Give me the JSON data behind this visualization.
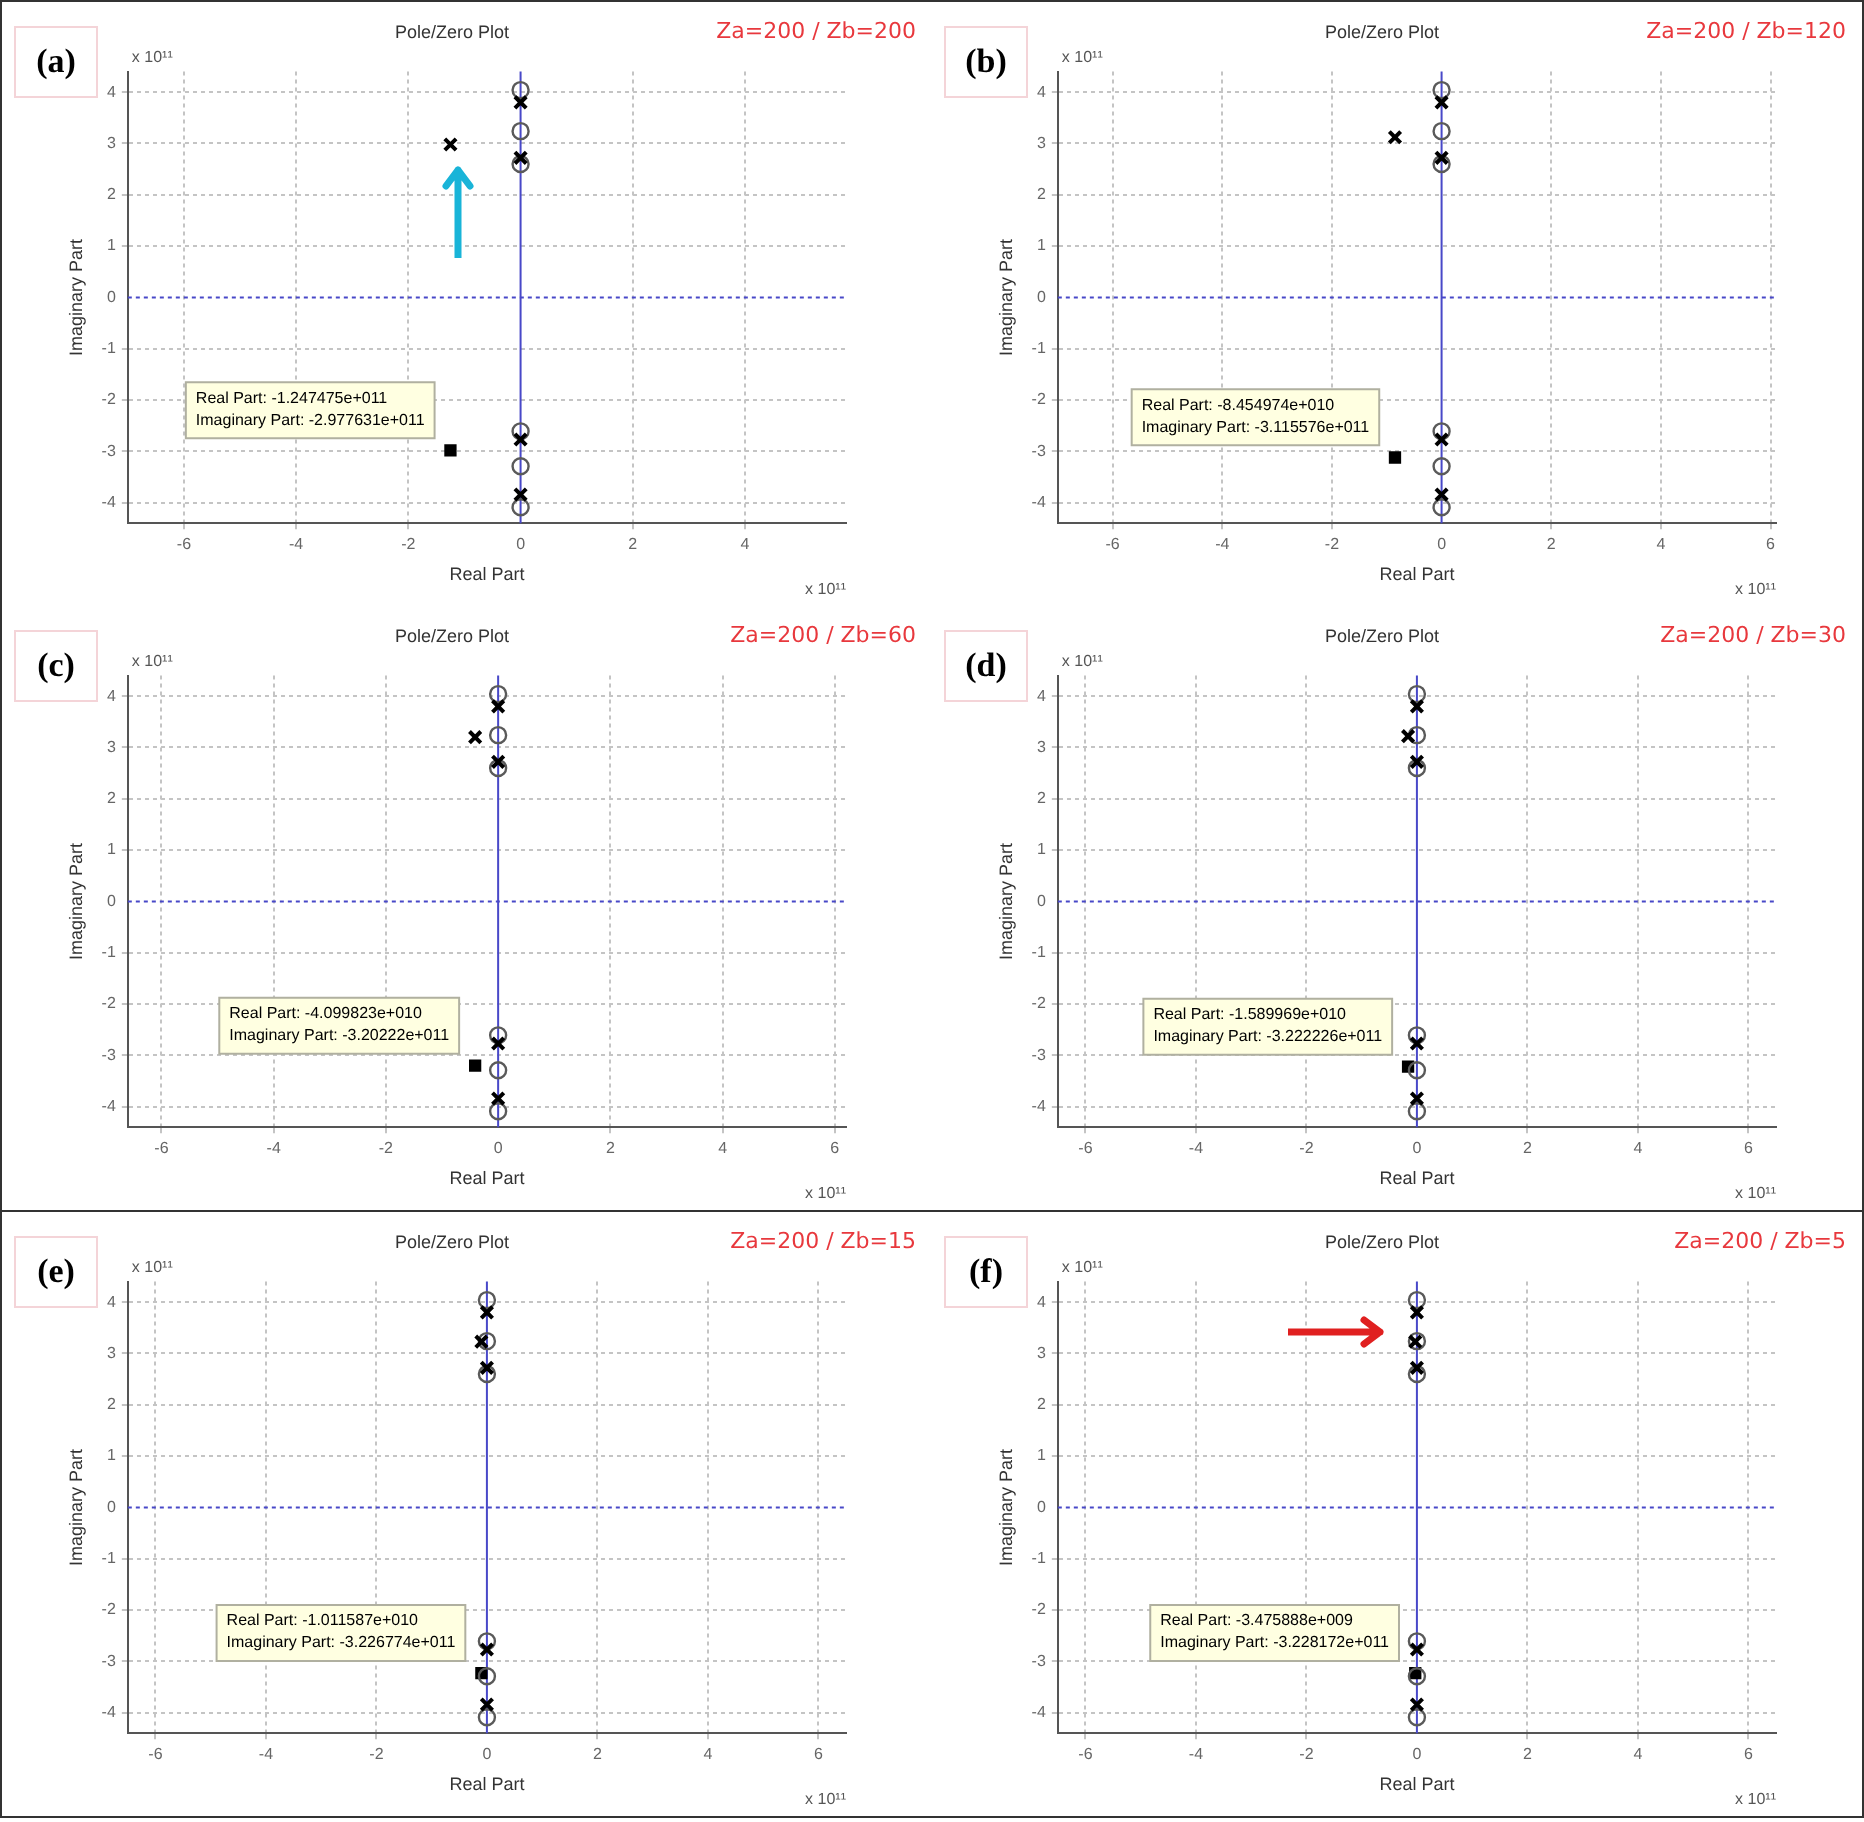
{
  "chart_data": [
    {
      "type": "scatter",
      "title": "Pole/Zero Plot",
      "subtitle": "Za=200 / Zb=200",
      "xlabel": "Real Part",
      "ylabel": "Imaginary Part",
      "annotations": [
        "(a)",
        "x 10¹¹",
        "x 10¹¹",
        {
          "text": "Real Part: -1.247475e+011\nImaginary Part: -2.977631e+011",
          "x": -1.247475,
          "y": -2.977631
        }
      ],
      "series": [
        {
          "color": "#000000",
          "marker": "cross",
          "x": [
            -1.25,
            0,
            0,
            0,
            0
          ],
          "values": [
            2.98,
            3.8,
            2.72,
            -2.77,
            -3.84
          ]
        },
        {
          "color": "#5a5a5a",
          "marker": "circle",
          "x": [
            0,
            0,
            0,
            0,
            0,
            0
          ],
          "values": [
            4.04,
            3.24,
            2.6,
            -2.61,
            -3.29,
            -4.09
          ]
        },
        {
          "color": "#000000",
          "marker": "square",
          "x": [
            -1.25
          ],
          "values": [
            -2.98
          ]
        }
      ],
      "xlim": [
        -7,
        5.8
      ],
      "xticks": [
        -6,
        -4,
        -2,
        0,
        2,
        4
      ],
      "ylim": [
        -4.4,
        4.4
      ],
      "yticks": [
        -4,
        -3,
        -2,
        -1,
        0,
        1,
        2,
        3,
        4
      ],
      "grid": true,
      "ref_lines": [
        {
          "axis": "x",
          "value": 0,
          "color": "#4848c8",
          "line_style": "solid"
        },
        {
          "axis": "y",
          "value": 0,
          "color": "#4848c8",
          "line_style": "dotted"
        }
      ]
    },
    {
      "type": "scatter",
      "title": "Pole/Zero Plot",
      "subtitle": "Za=200 / Zb=120",
      "xlabel": "Real Part",
      "ylabel": "Imaginary Part",
      "annotations": [
        "(b)",
        "x 10¹¹",
        "x 10¹¹",
        {
          "text": "Real Part: -8.454974e+010\nImaginary Part: -3.115576e+011",
          "x": -0.8454974,
          "y": -3.115576
        }
      ],
      "series": [
        {
          "color": "#000000",
          "marker": "cross",
          "x": [
            -0.85,
            0,
            0,
            0,
            0
          ],
          "values": [
            3.12,
            3.8,
            2.72,
            -2.77,
            -3.84
          ]
        },
        {
          "color": "#5a5a5a",
          "marker": "circle",
          "x": [
            0,
            0,
            0,
            0,
            0,
            0
          ],
          "values": [
            4.04,
            3.24,
            2.6,
            -2.61,
            -3.29,
            -4.09
          ]
        },
        {
          "color": "#000000",
          "marker": "square",
          "x": [
            -0.85
          ],
          "values": [
            -3.12
          ]
        }
      ],
      "xlim": [
        -7,
        6.1
      ],
      "xticks": [
        -6,
        -4,
        -2,
        0,
        2,
        4,
        6
      ],
      "ylim": [
        -4.4,
        4.4
      ],
      "yticks": [
        -4,
        -3,
        -2,
        -1,
        0,
        1,
        2,
        3,
        4
      ],
      "grid": true,
      "ref_lines": [
        {
          "axis": "x",
          "value": 0,
          "color": "#4848c8",
          "line_style": "solid"
        },
        {
          "axis": "y",
          "value": 0,
          "color": "#4848c8",
          "line_style": "dotted"
        }
      ]
    },
    {
      "type": "scatter",
      "title": "Pole/Zero Plot",
      "subtitle": "Za=200 / Zb=60",
      "xlabel": "Real Part",
      "ylabel": "Imaginary Part",
      "annotations": [
        "(c)",
        "x 10¹¹",
        "x 10¹¹",
        {
          "text": "Real Part: -4.099823e+010\nImaginary Part: -3.20222e+011",
          "x": -0.4099823,
          "y": -3.20222
        }
      ],
      "series": [
        {
          "color": "#000000",
          "marker": "cross",
          "x": [
            -0.41,
            0,
            0,
            0,
            0
          ],
          "values": [
            3.2,
            3.8,
            2.72,
            -2.77,
            -3.84
          ]
        },
        {
          "color": "#5a5a5a",
          "marker": "circle",
          "x": [
            0,
            0,
            0,
            0,
            0,
            0
          ],
          "values": [
            4.04,
            3.24,
            2.6,
            -2.61,
            -3.29,
            -4.09
          ]
        },
        {
          "color": "#000000",
          "marker": "square",
          "x": [
            -0.41
          ],
          "values": [
            -3.2
          ]
        }
      ],
      "xlim": [
        -6.6,
        6.2
      ],
      "xticks": [
        -6,
        -4,
        -2,
        0,
        2,
        4,
        6
      ],
      "ylim": [
        -4.4,
        4.4
      ],
      "yticks": [
        -4,
        -3,
        -2,
        -1,
        0,
        1,
        2,
        3,
        4
      ],
      "grid": true,
      "ref_lines": [
        {
          "axis": "x",
          "value": 0,
          "color": "#4848c8",
          "line_style": "solid"
        },
        {
          "axis": "y",
          "value": 0,
          "color": "#4848c8",
          "line_style": "dotted"
        }
      ]
    },
    {
      "type": "scatter",
      "title": "Pole/Zero Plot",
      "subtitle": "Za=200 / Zb=30",
      "xlabel": "Real Part",
      "ylabel": "Imaginary Part",
      "annotations": [
        "(d)",
        "x 10¹¹",
        "x 10¹¹",
        {
          "text": "Real Part: -1.589969e+010\nImaginary Part: -3.222226e+011",
          "x": -0.1589969,
          "y": -3.222226
        }
      ],
      "series": [
        {
          "color": "#000000",
          "marker": "cross",
          "x": [
            -0.16,
            0,
            0,
            0,
            0
          ],
          "values": [
            3.22,
            3.8,
            2.72,
            -2.77,
            -3.84
          ]
        },
        {
          "color": "#5a5a5a",
          "marker": "circle",
          "x": [
            0,
            0,
            0,
            0,
            0,
            0
          ],
          "values": [
            4.04,
            3.24,
            2.6,
            -2.61,
            -3.29,
            -4.09
          ]
        },
        {
          "color": "#000000",
          "marker": "square",
          "x": [
            -0.16
          ],
          "values": [
            -3.22
          ]
        }
      ],
      "xlim": [
        -6.5,
        6.5
      ],
      "xticks": [
        -6,
        -4,
        -2,
        0,
        2,
        4,
        6
      ],
      "ylim": [
        -4.4,
        4.4
      ],
      "yticks": [
        -4,
        -3,
        -2,
        -1,
        0,
        1,
        2,
        3,
        4
      ],
      "grid": true,
      "ref_lines": [
        {
          "axis": "x",
          "value": 0,
          "color": "#4848c8",
          "line_style": "solid"
        },
        {
          "axis": "y",
          "value": 0,
          "color": "#4848c8",
          "line_style": "dotted"
        }
      ]
    },
    {
      "type": "scatter",
      "title": "Pole/Zero Plot",
      "subtitle": "Za=200 / Zb=15",
      "xlabel": "Real Part",
      "ylabel": "Imaginary Part",
      "annotations": [
        "(e)",
        "x 10¹¹",
        "x 10¹¹",
        {
          "text": "Real Part: -1.011587e+010\nImaginary Part: -3.226774e+011",
          "x": -0.1011587,
          "y": -3.226774
        }
      ],
      "series": [
        {
          "color": "#000000",
          "marker": "cross",
          "x": [
            -0.1,
            0,
            0,
            0,
            0
          ],
          "values": [
            3.23,
            3.8,
            2.72,
            -2.77,
            -3.84
          ]
        },
        {
          "color": "#5a5a5a",
          "marker": "circle",
          "x": [
            0,
            0,
            0,
            0,
            0,
            0
          ],
          "values": [
            4.04,
            3.24,
            2.6,
            -2.61,
            -3.29,
            -4.09
          ]
        },
        {
          "color": "#000000",
          "marker": "square",
          "x": [
            -0.1
          ],
          "values": [
            -3.23
          ]
        }
      ],
      "xlim": [
        -6.5,
        6.5
      ],
      "xticks": [
        -6,
        -4,
        -2,
        0,
        2,
        4,
        6
      ],
      "ylim": [
        -4.4,
        4.4
      ],
      "yticks": [
        -4,
        -3,
        -2,
        -1,
        0,
        1,
        2,
        3,
        4
      ],
      "grid": true,
      "ref_lines": [
        {
          "axis": "x",
          "value": 0,
          "color": "#4848c8",
          "line_style": "solid"
        },
        {
          "axis": "y",
          "value": 0,
          "color": "#4848c8",
          "line_style": "dotted"
        }
      ]
    },
    {
      "type": "scatter",
      "title": "Pole/Zero Plot",
      "subtitle": "Za=200 / Zb=5",
      "xlabel": "Real Part",
      "ylabel": "Imaginary Part",
      "annotations": [
        "(f)",
        "x 10¹¹",
        "x 10¹¹",
        {
          "text": "Real Part: -3.475888e+009\nImaginary Part: -3.228172e+011",
          "x": -0.03475888,
          "y": -3.228172
        }
      ],
      "series": [
        {
          "color": "#000000",
          "marker": "cross",
          "x": [
            -0.03,
            0,
            0,
            0,
            0
          ],
          "values": [
            3.23,
            3.8,
            2.72,
            -2.77,
            -3.84
          ]
        },
        {
          "color": "#5a5a5a",
          "marker": "circle",
          "x": [
            0,
            0,
            0,
            0,
            0,
            0
          ],
          "values": [
            4.04,
            3.24,
            2.6,
            -2.61,
            -3.29,
            -4.09
          ]
        },
        {
          "color": "#000000",
          "marker": "square",
          "x": [
            -0.03
          ],
          "values": [
            -3.23
          ]
        }
      ],
      "xlim": [
        -6.5,
        6.5
      ],
      "xticks": [
        -6,
        -4,
        -2,
        0,
        2,
        4,
        6
      ],
      "ylim": [
        -4.4,
        4.4
      ],
      "yticks": [
        -4,
        -3,
        -2,
        -1,
        0,
        1,
        2,
        3,
        4
      ],
      "grid": true,
      "ref_lines": [
        {
          "axis": "x",
          "value": 0,
          "color": "#4848c8",
          "line_style": "solid"
        },
        {
          "axis": "y",
          "value": 0,
          "color": "#4848c8",
          "line_style": "dotted"
        }
      ]
    }
  ]
}
